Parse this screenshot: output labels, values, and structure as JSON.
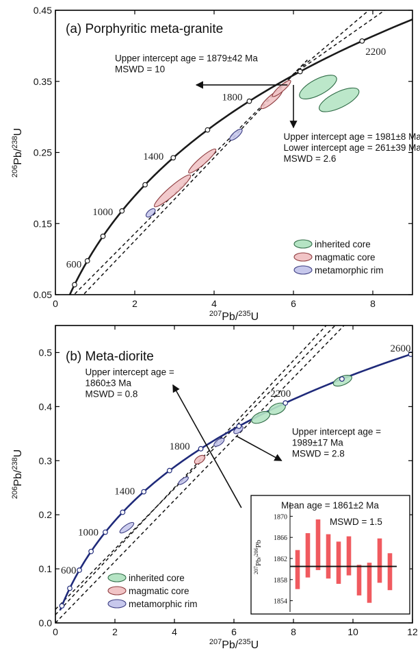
{
  "chart_data": [
    {
      "type": "scatter",
      "title": "(a) Porphyritic meta-granite",
      "xlabel_base": "207",
      "xlabel_tail": "Pb/",
      "xlabel_base2": "235",
      "xlabel_end": "U",
      "ylabel_base": "206",
      "ylabel_tail": "Pb/",
      "ylabel_base2": "238",
      "ylabel_end": "U",
      "xlim": [
        0,
        9
      ],
      "ylim": [
        0.05,
        0.45
      ],
      "xticks": [
        0,
        2,
        4,
        6,
        8
      ],
      "xtick_labels": [
        "0",
        "2",
        "4",
        "6",
        "8"
      ],
      "yticks": [
        0.05,
        0.15,
        0.25,
        0.35,
        0.45
      ],
      "ytick_labels": [
        "0.05",
        "0.15",
        "0.25",
        "0.35",
        "0.45"
      ],
      "concordia_color": "#1a1a1a",
      "concordia_ages": [
        600,
        1000,
        1400,
        1800,
        2200
      ],
      "concordia_age_labels": [
        "600",
        "1000",
        "1400",
        "1800",
        "2200"
      ],
      "discordia_lines": [
        {
          "from": [
            0.38,
            0.045
          ],
          "to": [
            6.35,
            0.38
          ]
        },
        {
          "from": [
            0.62,
            0.045
          ],
          "to": [
            6.35,
            0.38
          ]
        },
        {
          "from": [
            6.0,
            0.36
          ],
          "to": [
            8.3,
            0.45
          ]
        },
        {
          "from": [
            6.0,
            0.36
          ],
          "to": [
            7.9,
            0.45
          ]
        }
      ],
      "annotations": [
        {
          "lines": [
            "Upper intercept age = 1879±42 Ma",
            "MSWD = 10"
          ],
          "anchor_data": [
            1.5,
            0.378
          ]
        },
        {
          "lines": [
            "Upper intercept age = 1981±8 Ma",
            "Lower intercept age = 261±39 Ma",
            "MSWD = 2.6"
          ],
          "anchor_data": [
            5.75,
            0.268
          ]
        }
      ],
      "arrows": [
        {
          "from": [
            5.85,
            0.345
          ],
          "to": [
            3.55,
            0.345
          ]
        },
        {
          "from": [
            6.0,
            0.345
          ],
          "to": [
            6.0,
            0.285
          ]
        }
      ],
      "ellipses": [
        {
          "group": "inherited",
          "x": 6.62,
          "y": 0.342,
          "rx": 0.52,
          "ry": 0.011,
          "angle": -28
        },
        {
          "group": "inherited",
          "x": 7.15,
          "y": 0.324,
          "rx": 0.55,
          "ry": 0.011,
          "angle": -26
        },
        {
          "group": "magmatic",
          "x": 2.95,
          "y": 0.196,
          "rx": 0.6,
          "ry": 0.006,
          "angle": -41
        },
        {
          "group": "magmatic",
          "x": 3.7,
          "y": 0.238,
          "rx": 0.45,
          "ry": 0.005,
          "angle": -41
        },
        {
          "group": "magmatic",
          "x": 5.45,
          "y": 0.325,
          "rx": 0.35,
          "ry": 0.005,
          "angle": -41
        },
        {
          "group": "magmatic",
          "x": 5.7,
          "y": 0.34,
          "rx": 0.3,
          "ry": 0.004,
          "angle": -41
        },
        {
          "group": "metamorphic",
          "x": 2.4,
          "y": 0.165,
          "rx": 0.14,
          "ry": 0.004,
          "angle": -41
        },
        {
          "group": "metamorphic",
          "x": 4.55,
          "y": 0.275,
          "rx": 0.2,
          "ry": 0.004,
          "angle": -41
        }
      ],
      "legend": [
        {
          "label": "inherited core",
          "color": "#b5e4c4"
        },
        {
          "label": "magmatic core",
          "color": "#f1c4c6"
        },
        {
          "label": "metamorphic rim",
          "color": "#c7c8ec"
        }
      ]
    },
    {
      "type": "scatter",
      "title": "(b) Meta-diorite",
      "xlabel_base": "207",
      "xlabel_tail": "Pb/",
      "xlabel_base2": "235",
      "xlabel_end": "U",
      "ylabel_base": "206",
      "ylabel_tail": "Pb/",
      "ylabel_base2": "238",
      "ylabel_end": "U",
      "xlim": [
        0,
        12
      ],
      "ylim": [
        0,
        0.55
      ],
      "xticks": [
        0,
        2,
        4,
        6,
        8,
        10,
        12
      ],
      "xtick_labels": [
        "0",
        "2",
        "4",
        "6",
        "8",
        "10",
        "12"
      ],
      "yticks": [
        0,
        0.1,
        0.2,
        0.3,
        0.4,
        0.5
      ],
      "ytick_labels": [
        "0.0",
        "0.1",
        "0.2",
        "0.3",
        "0.4",
        "0.5"
      ],
      "concordia_color": "#1f2a7a",
      "concordia_ages": [
        600,
        1000,
        1400,
        1800,
        2200,
        2600
      ],
      "concordia_age_labels": [
        "600",
        "1000",
        "1400",
        "1800",
        "2200",
        "2600"
      ],
      "discordia_lines": [
        {
          "from": [
            0.0,
            0.015
          ],
          "to": [
            9.1,
            0.55
          ]
        },
        {
          "from": [
            0.0,
            0.0
          ],
          "to": [
            9.7,
            0.55
          ]
        },
        {
          "from": [
            0.0,
            0.025
          ],
          "to": [
            9.4,
            0.55
          ]
        }
      ],
      "annotations": [
        {
          "lines": [
            "Upper intercept age =",
            "1860±3 Ma",
            "MSWD = 0.8"
          ],
          "anchor_data": [
            1.0,
            0.458
          ]
        },
        {
          "lines": [
            "Upper intercept age =",
            "1989±17 Ma",
            "MSWD = 2.8"
          ],
          "anchor_data": [
            7.95,
            0.348
          ]
        }
      ],
      "arrows": [
        {
          "from": [
            6.25,
            0.213
          ],
          "to": [
            3.95,
            0.44
          ]
        },
        {
          "from": [
            6.1,
            0.345
          ],
          "to": [
            7.6,
            0.3
          ]
        }
      ],
      "ellipses": [
        {
          "group": "inherited",
          "x": 6.9,
          "y": 0.38,
          "rx": 0.33,
          "ry": 0.009,
          "angle": -24
        },
        {
          "group": "inherited",
          "x": 7.45,
          "y": 0.396,
          "rx": 0.3,
          "ry": 0.009,
          "angle": -24
        },
        {
          "group": "inherited",
          "x": 9.65,
          "y": 0.448,
          "rx": 0.33,
          "ry": 0.008,
          "angle": -22
        },
        {
          "group": "magmatic",
          "x": 4.85,
          "y": 0.302,
          "rx": 0.2,
          "ry": 0.006,
          "angle": -35
        },
        {
          "group": "metamorphic",
          "x": 5.5,
          "y": 0.334,
          "rx": 0.2,
          "ry": 0.005,
          "angle": -35
        },
        {
          "group": "metamorphic",
          "x": 6.15,
          "y": 0.357,
          "rx": 0.18,
          "ry": 0.005,
          "angle": -35
        },
        {
          "group": "metamorphic",
          "x": 2.4,
          "y": 0.176,
          "rx": 0.28,
          "ry": 0.005,
          "angle": -35
        },
        {
          "group": "metamorphic",
          "x": 4.3,
          "y": 0.263,
          "rx": 0.2,
          "ry": 0.004,
          "angle": -35
        }
      ],
      "legend": [
        {
          "label": "inherited core",
          "color": "#b5e4c4"
        },
        {
          "label": "magmatic core",
          "color": "#f1c4c6"
        },
        {
          "label": "metamorphic rim",
          "color": "#c7c8ec"
        }
      ],
      "inset": {
        "type": "bar",
        "title": "Mean age = 1861±2 Ma",
        "subtitle": "MSWD = 1.5",
        "ylabel_base": "207",
        "ylabel_tail": "Pb/",
        "ylabel_base2": "206",
        "ylabel_end": "Pb",
        "ylim": [
          1852,
          1872
        ],
        "yticks": [
          1854,
          1858,
          1862,
          1866,
          1870
        ],
        "ytick_labels": [
          "1854",
          "1858",
          "1862",
          "1866",
          "1870"
        ],
        "mean": 1860.5,
        "bar_color": "#f05a5f",
        "bars": [
          {
            "low": 1856.2,
            "high": 1863.6
          },
          {
            "low": 1858.4,
            "high": 1866.8
          },
          {
            "low": 1859.8,
            "high": 1869.4
          },
          {
            "low": 1858.2,
            "high": 1866.6
          },
          {
            "low": 1857.2,
            "high": 1865.2
          },
          {
            "low": 1858.8,
            "high": 1866.2
          },
          {
            "low": 1855.0,
            "high": 1860.8
          },
          {
            "low": 1853.6,
            "high": 1861.2
          },
          {
            "low": 1857.4,
            "high": 1865.8
          },
          {
            "low": 1856.0,
            "high": 1863.0
          }
        ]
      }
    }
  ]
}
